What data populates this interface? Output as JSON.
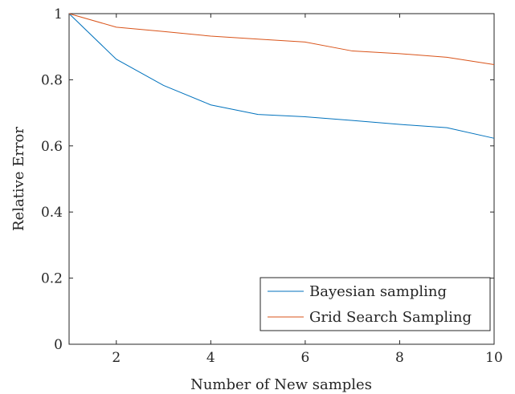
{
  "chart_data": {
    "type": "line",
    "title": "",
    "xlabel": "Number of New samples",
    "ylabel": "Relative Error",
    "xlim": [
      1,
      10
    ],
    "ylim": [
      0,
      1
    ],
    "xticks": [
      2,
      4,
      6,
      8,
      10
    ],
    "xtick_labels": [
      "2",
      "4",
      "6",
      "8",
      "10"
    ],
    "yticks": [
      0,
      0.2,
      0.4,
      0.6,
      0.8,
      1
    ],
    "ytick_labels": [
      "0",
      "0.2",
      "0.4",
      "0.6",
      "0.8",
      "1"
    ],
    "grid": false,
    "legend_position": "bottom-right",
    "x": [
      1,
      2,
      3,
      4,
      5,
      6,
      7,
      8,
      9,
      10
    ],
    "series": [
      {
        "name": "Bayesian sampling",
        "color": "#0072BD",
        "values": [
          1.0,
          0.862,
          0.783,
          0.724,
          0.695,
          0.688,
          0.677,
          0.665,
          0.655,
          0.623
        ]
      },
      {
        "name": "Grid Search Sampling",
        "color": "#D95319",
        "values": [
          1.0,
          0.959,
          0.946,
          0.932,
          0.923,
          0.914,
          0.887,
          0.879,
          0.868,
          0.846
        ]
      }
    ]
  }
}
